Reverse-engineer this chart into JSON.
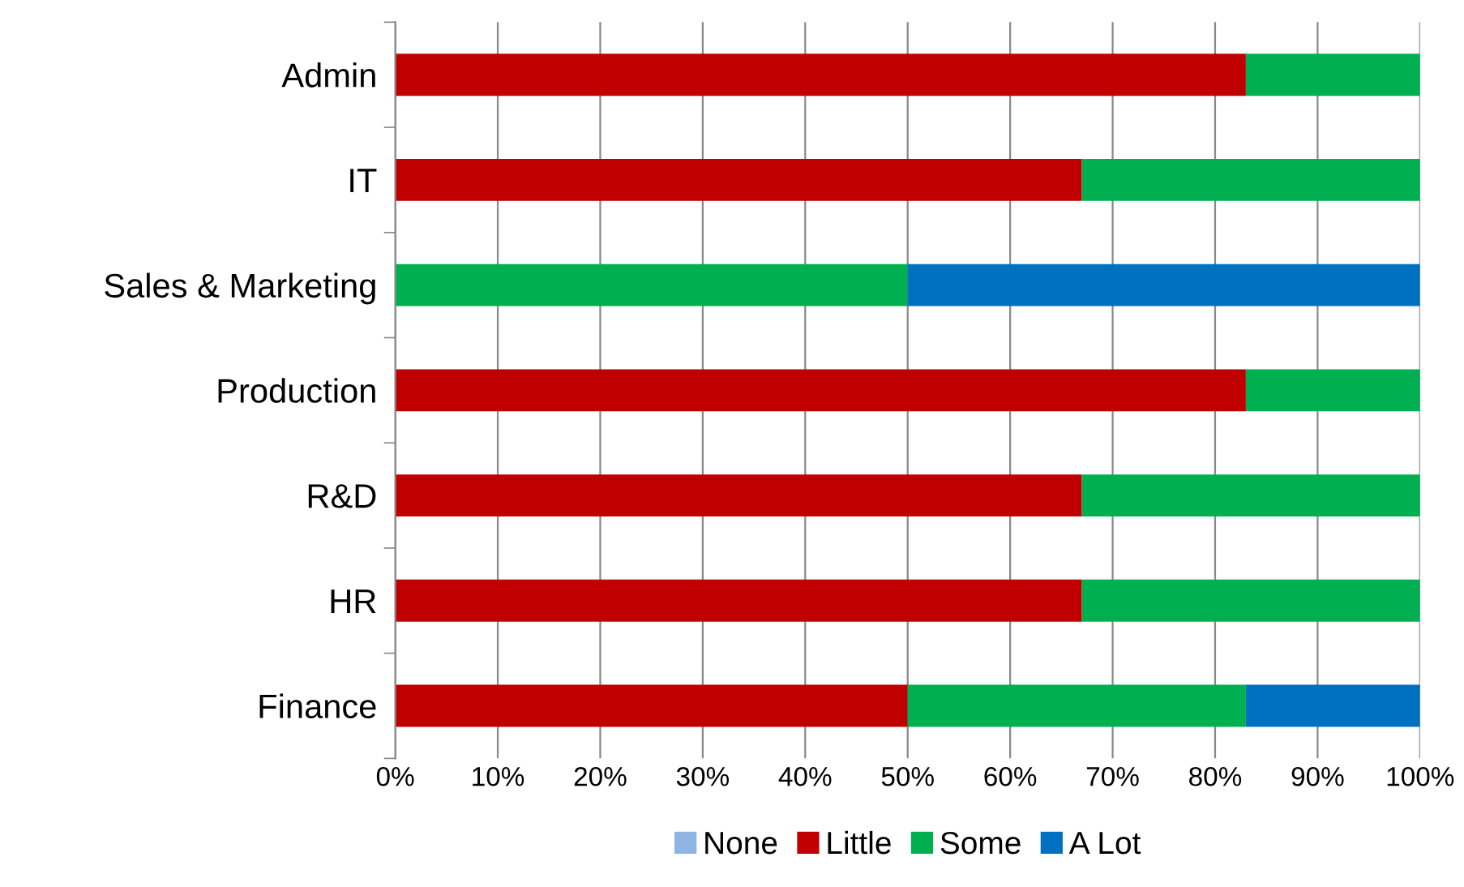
{
  "chart_data": {
    "type": "bar",
    "orientation": "horizontal",
    "stacked": true,
    "categories": [
      "Admin",
      "IT",
      "Sales & Marketing",
      "Production",
      "R&D",
      "HR",
      "Finance"
    ],
    "series": [
      {
        "name": "None",
        "color": "#8db4e2",
        "values": [
          0,
          0,
          0,
          0,
          0,
          0,
          0
        ]
      },
      {
        "name": "Little",
        "color": "#c00000",
        "values": [
          83,
          67,
          0,
          83,
          67,
          67,
          50
        ]
      },
      {
        "name": "Some",
        "color": "#00b050",
        "values": [
          17,
          33,
          50,
          17,
          33,
          33,
          33
        ]
      },
      {
        "name": "A Lot",
        "color": "#0070c0",
        "values": [
          0,
          0,
          50,
          0,
          0,
          0,
          17
        ]
      }
    ],
    "xlim": [
      0,
      100
    ],
    "xticks": [
      {
        "value": 0,
        "label": "0%"
      },
      {
        "value": 10,
        "label": "10%"
      },
      {
        "value": 20,
        "label": "20%"
      },
      {
        "value": 30,
        "label": "30%"
      },
      {
        "value": 40,
        "label": "40%"
      },
      {
        "value": 50,
        "label": "50%"
      },
      {
        "value": 60,
        "label": "60%"
      },
      {
        "value": 70,
        "label": "70%"
      },
      {
        "value": 80,
        "label": "80%"
      },
      {
        "value": 90,
        "label": "90%"
      },
      {
        "value": 100,
        "label": "100%"
      }
    ],
    "grid": "x",
    "legend": "bottom"
  }
}
